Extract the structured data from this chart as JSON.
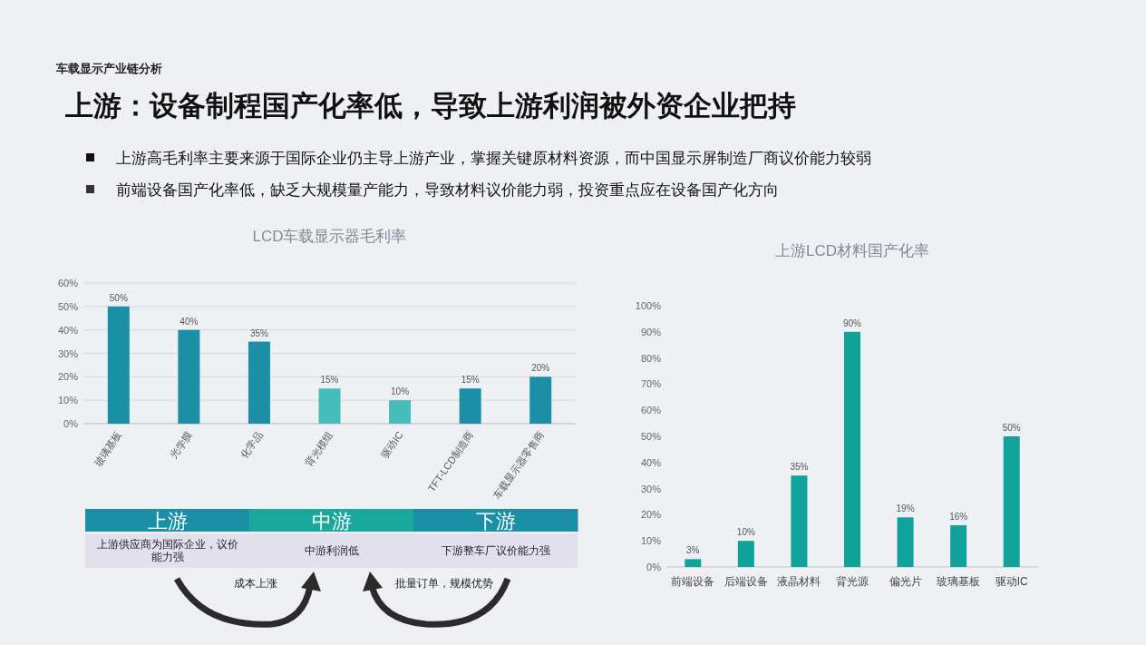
{
  "chart_data": [
    {
      "type": "other",
      "title": "上游：设备制程国产化率低，导致上游利润被外资企业把持",
      "subtitle": "车载显示产业链分析",
      "annotations": [
        "上游高毛利率主要来源于国际企业仍主导上游产业，掌握关键原材料资源，而中国显示屏制造厂商议价能力较弱",
        "前端设备国产化率低，缺乏大规模量产能力，导致材料议价能力弱，投资重点应在设备国产化方向"
      ]
    },
    {
      "type": "bar",
      "title": "LCD车载显示器毛利率",
      "categories": [
        "玻璃基板",
        "光学膜",
        "化学品",
        "背光模组",
        "驱动IC",
        "TFT-LCD制造商",
        "车载显示器零售商"
      ],
      "values": [
        50,
        40,
        35,
        15,
        10,
        15,
        20
      ],
      "colors": [
        "#1b8fa6",
        "#1b8fa6",
        "#1b8fa6",
        "#45bdb8",
        "#45bdb8",
        "#1b8fa6",
        "#1b8fa6"
      ],
      "value_labels": [
        "50%",
        "40%",
        "35%",
        "15%",
        "10%",
        "15%",
        "20%"
      ],
      "ylim": [
        0,
        60
      ],
      "yticks": [
        {
          "value": 0,
          "label": "0%"
        },
        {
          "value": 10,
          "label": "10%"
        },
        {
          "value": 20,
          "label": "20%"
        },
        {
          "value": 30,
          "label": "30%"
        },
        {
          "value": 40,
          "label": "40%"
        },
        {
          "value": 50,
          "label": "50%"
        },
        {
          "value": 60,
          "label": "60%"
        }
      ],
      "grid": "y"
    },
    {
      "type": "other",
      "categories": [
        "上游",
        "中游",
        "下游"
      ],
      "colors": [
        "#1b8fa6",
        "#1aa79c",
        "#1b8fa6"
      ],
      "annotations": [
        "上游供应商为国际企业，议价能力强",
        "中游利润低",
        "下游整车厂议价能力强",
        "成本上涨",
        "批量订单，规模优势"
      ]
    },
    {
      "type": "bar",
      "title": "上游LCD材料国产化率",
      "categories": [
        "前端设备",
        "后端设备",
        "液晶材料",
        "背光源",
        "偏光片",
        "玻璃基板",
        "驱动IC"
      ],
      "values": [
        3,
        10,
        35,
        90,
        19,
        16,
        50
      ],
      "color": "#10a39b",
      "value_labels": [
        "3%",
        "10%",
        "35%",
        "90%",
        "19%",
        "16%",
        "50%"
      ],
      "ylim": [
        0,
        100
      ],
      "yticks": [
        {
          "value": 0,
          "label": "0%"
        },
        {
          "value": 10,
          "label": "10%"
        },
        {
          "value": 20,
          "label": "20%"
        },
        {
          "value": 30,
          "label": "30%"
        },
        {
          "value": 40,
          "label": "40%"
        },
        {
          "value": 50,
          "label": "50%"
        },
        {
          "value": 60,
          "label": "60%"
        },
        {
          "value": 70,
          "label": "70%"
        },
        {
          "value": 80,
          "label": "80%"
        },
        {
          "value": 90,
          "label": "90%"
        },
        {
          "value": 100,
          "label": "100%"
        }
      ],
      "grid": false
    }
  ]
}
